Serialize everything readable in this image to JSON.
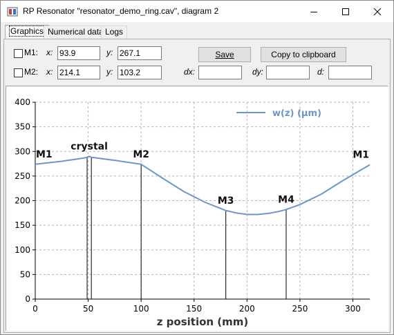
{
  "window": {
    "title": "RP Resonator \"resonator_demo_ring.cav\", diagram 2"
  },
  "tabs": [
    {
      "label": "Graphics",
      "active": true
    },
    {
      "label": "Numerical data",
      "active": false
    },
    {
      "label": "Logs",
      "active": false
    }
  ],
  "markers": {
    "m1": {
      "label": "M1:",
      "x_label": "x:",
      "x_value": "93.9",
      "y_label": "y:",
      "y_value": "267.1",
      "checked": false
    },
    "m2": {
      "label": "M2:",
      "x_label": "x:",
      "x_value": "214.1",
      "y_label": "y:",
      "y_value": "103.2",
      "checked": false
    }
  },
  "deltas": {
    "dx_label": "dx:",
    "dx_value": "",
    "dy_label": "dy:",
    "dy_value": "",
    "d_label": "d:",
    "d_value": ""
  },
  "buttons": {
    "save_label": "Save",
    "copy_label": "Copy to clipboard"
  },
  "icons": {
    "app": "rp-resonator-app-icon",
    "minimize": "minimize-icon",
    "maximize": "maximize-icon",
    "close": "close-icon"
  },
  "chart_data": {
    "type": "line",
    "xlabel": "z position (mm)",
    "ylabel": "",
    "xlim": [
      0,
      316
    ],
    "ylim": [
      0,
      400
    ],
    "x_ticks": [
      0,
      50,
      100,
      150,
      200,
      250,
      300
    ],
    "y_ticks": [
      0,
      50,
      100,
      150,
      200,
      250,
      300,
      350,
      400
    ],
    "grid": true,
    "legend_position": "top-right",
    "series": [
      {
        "name": "w(z) (µm)",
        "color": "#6a96c8",
        "x": [
          0,
          25,
          47,
          51,
          53,
          75,
          100,
          120,
          140,
          160,
          180,
          190,
          200,
          210,
          220,
          230,
          237,
          250,
          270,
          290,
          316
        ],
        "y": [
          274,
          280,
          287,
          290,
          288,
          282,
          274,
          246,
          219,
          197,
          180,
          175,
          172,
          172,
          174,
          178,
          182,
          192,
          213,
          240,
          273
        ]
      }
    ],
    "elements": [
      {
        "label": "M1",
        "x": 0
      },
      {
        "label": "crystal",
        "x": 49,
        "x2": 53
      },
      {
        "label": "M2",
        "x": 100
      },
      {
        "label": "M3",
        "x": 180
      },
      {
        "label": "M4",
        "x": 237
      },
      {
        "label": "M1",
        "x": 316
      }
    ]
  }
}
